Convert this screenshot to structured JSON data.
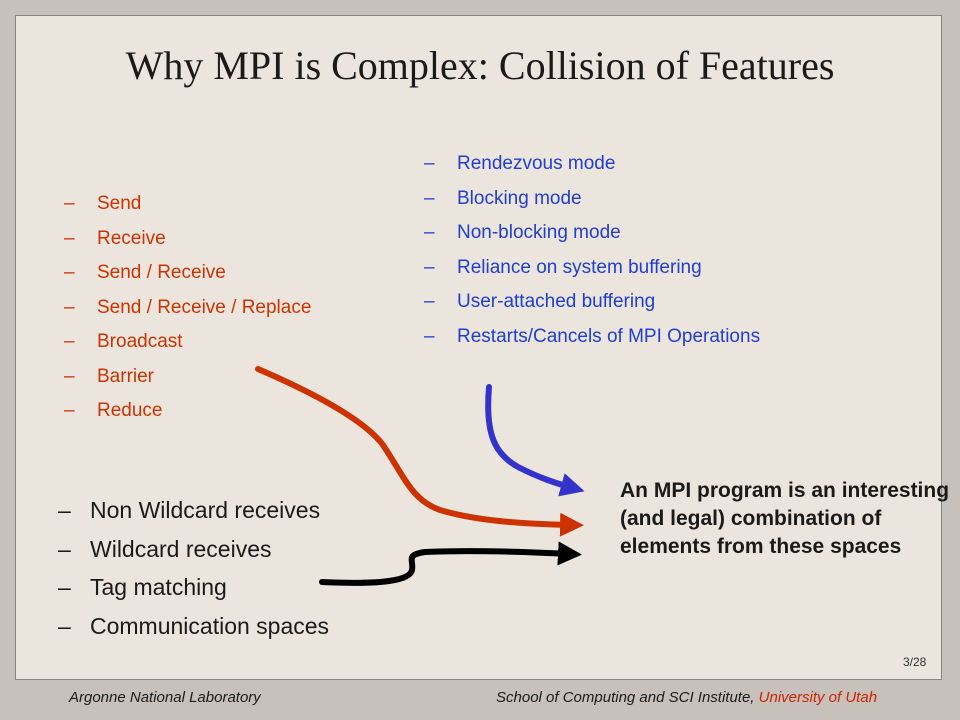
{
  "slide": {
    "title": "Why MPI is Complex: Collision of Features",
    "list_dash": "–",
    "operations": [
      "Send",
      "Receive",
      "Send / Receive",
      "Send / Receive / Replace",
      "Broadcast",
      "Barrier",
      "Reduce"
    ],
    "modes": [
      "Rendezvous mode",
      "Blocking mode",
      "Non-blocking mode",
      "Reliance on system buffering",
      "User-attached buffering",
      "Restarts/Cancels of MPI Operations"
    ],
    "receives": [
      "Non Wildcard receives",
      "Wildcard receives",
      "Tag matching",
      "Communication spaces"
    ],
    "conclusion": "An MPI program is an interesting (and legal) combination of elements from these spaces",
    "slide_number": "3/28",
    "colors": {
      "operations": "#cc3300",
      "modes": "#1f3fcc",
      "receives": "#1a1a1a",
      "arrow_red": "#cc3300",
      "arrow_blue": "#3333cc",
      "arrow_black": "#000000"
    }
  },
  "footer": {
    "left": "Argonne National Laboratory",
    "right_prefix": "School of Computing and SCI Institute, ",
    "right_highlight": "University of Utah"
  }
}
